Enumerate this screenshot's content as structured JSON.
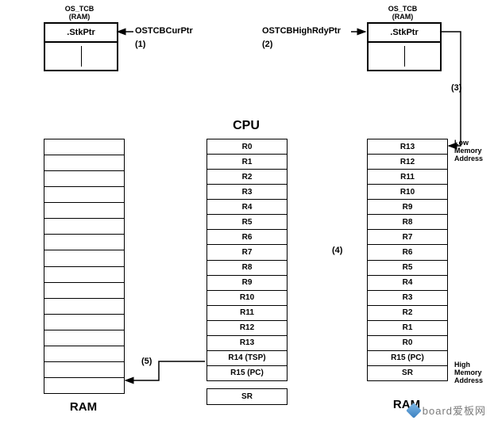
{
  "tcb_left": {
    "header": "OS_TCB",
    "sub": "(RAM)",
    "field": ".StkPtr"
  },
  "tcb_right": {
    "header": "OS_TCB",
    "sub": "(RAM)",
    "field": ".StkPtr"
  },
  "ptr_left": "OSTCBCurPtr",
  "ptr_right": "OSTCBHighRdyPtr",
  "step1": "(1)",
  "step2": "(2)",
  "step3": "(3)",
  "step4": "(4)",
  "step5": "(5)",
  "cpu_title": "CPU",
  "cpu_regs": [
    "R0",
    "R1",
    "R2",
    "R3",
    "R4",
    "R5",
    "R6",
    "R7",
    "R8",
    "R9",
    "R10",
    "R11",
    "R12",
    "R13",
    "R14 (TSP)",
    "R15 (PC)"
  ],
  "sr": "SR",
  "right_stack": [
    "R13",
    "R12",
    "R11",
    "R10",
    "R9",
    "R8",
    "R7",
    "R6",
    "R5",
    "R4",
    "R3",
    "R2",
    "R1",
    "R0",
    "R15 (PC)",
    "SR"
  ],
  "left_stack_rows": 16,
  "ram_left": "RAM",
  "ram_right": "RAM",
  "low_mem": "Low\nMemory\nAddress",
  "high_mem": "High\nMemory\nAddress",
  "watermark": "board爱板网",
  "colors": {
    "line": "#000000",
    "bg": "#ffffff"
  }
}
